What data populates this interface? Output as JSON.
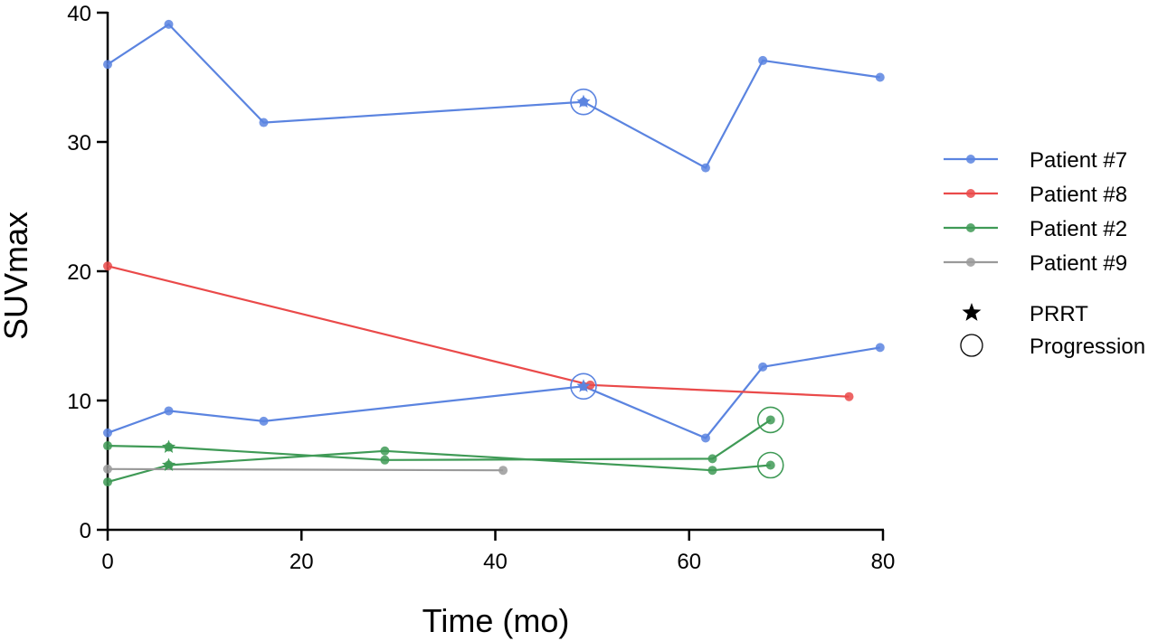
{
  "chart_data": {
    "type": "line",
    "title": "",
    "xlabel": "Time (mo)",
    "ylabel": "SUVmax",
    "xlim": [
      0,
      80
    ],
    "ylim": [
      0,
      40
    ],
    "xticks": [
      0,
      20,
      40,
      60,
      80
    ],
    "yticks": [
      0,
      10,
      20,
      30,
      40
    ],
    "grid": false,
    "legend_position": "right",
    "series": [
      {
        "name": "Patient #7",
        "color": "#5b84e0",
        "lines": [
          [
            [
              0,
              36.0
            ],
            [
              6.3,
              39.1
            ],
            [
              16.1,
              31.5
            ],
            [
              49.1,
              33.1
            ],
            [
              61.7,
              28.0
            ],
            [
              67.6,
              36.3
            ],
            [
              79.7,
              35.0
            ]
          ],
          [
            [
              0,
              7.5
            ],
            [
              6.3,
              9.2
            ],
            [
              16.1,
              8.4
            ],
            [
              49.1,
              11.1
            ],
            [
              61.7,
              7.1
            ],
            [
              67.6,
              12.6
            ],
            [
              79.7,
              14.1
            ]
          ]
        ]
      },
      {
        "name": "Patient #8",
        "color": "#ea4a4a",
        "lines": [
          [
            [
              0,
              20.4
            ],
            [
              49.8,
              11.2
            ],
            [
              76.5,
              10.3
            ]
          ]
        ]
      },
      {
        "name": "Patient #2",
        "color": "#3f9a56",
        "lines": [
          [
            [
              0,
              6.5
            ],
            [
              6.3,
              6.4
            ],
            [
              28.6,
              5.4
            ],
            [
              62.4,
              5.5
            ],
            [
              68.4,
              8.5
            ]
          ],
          [
            [
              0,
              3.7
            ],
            [
              6.3,
              5.0
            ],
            [
              28.6,
              6.1
            ],
            [
              62.4,
              4.6
            ],
            [
              68.4,
              5.0
            ]
          ]
        ]
      },
      {
        "name": "Patient #9",
        "color": "#9a9a9a",
        "lines": [
          [
            [
              0,
              4.7
            ],
            [
              40.8,
              4.6
            ]
          ]
        ]
      }
    ],
    "prrt_markers": [
      {
        "series": "Patient #7",
        "x": 49.1,
        "y": 33.1
      },
      {
        "series": "Patient #7",
        "x": 49.1,
        "y": 11.1
      },
      {
        "series": "Patient #2",
        "x": 6.3,
        "y": 6.4
      },
      {
        "series": "Patient #2",
        "x": 6.3,
        "y": 5.0
      }
    ],
    "progression_markers": [
      {
        "series": "Patient #7",
        "x": 49.1,
        "y": 33.1
      },
      {
        "series": "Patient #7",
        "x": 49.1,
        "y": 11.1
      },
      {
        "series": "Patient #2",
        "x": 68.4,
        "y": 8.5
      },
      {
        "series": "Patient #2",
        "x": 68.4,
        "y": 5.0
      }
    ],
    "legend_symbols": [
      {
        "label": "PRRT",
        "symbol": "star"
      },
      {
        "label": "Progression",
        "symbol": "circle"
      }
    ]
  }
}
